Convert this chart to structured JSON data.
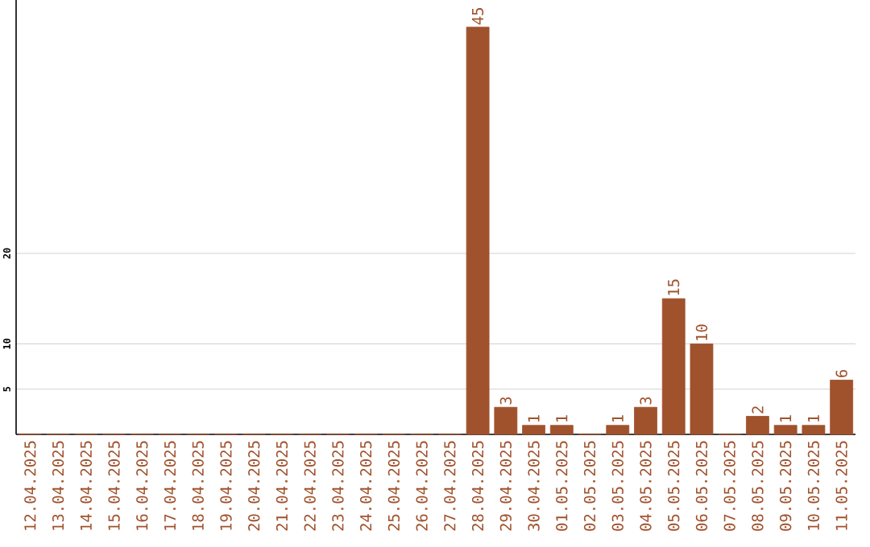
{
  "chart_data": {
    "type": "bar",
    "categories": [
      "12.04.2025",
      "13.04.2025",
      "14.04.2025",
      "15.04.2025",
      "16.04.2025",
      "17.04.2025",
      "18.04.2025",
      "19.04.2025",
      "20.04.2025",
      "21.04.2025",
      "22.04.2025",
      "23.04.2025",
      "24.04.2025",
      "25.04.2025",
      "26.04.2025",
      "27.04.2025",
      "28.04.2025",
      "29.04.2025",
      "30.04.2025",
      "01.05.2025",
      "02.05.2025",
      "03.05.2025",
      "04.05.2025",
      "05.05.2025",
      "06.05.2025",
      "07.05.2025",
      "08.05.2025",
      "09.05.2025",
      "10.05.2025",
      "11.05.2025"
    ],
    "values": [
      0,
      0,
      0,
      0,
      0,
      0,
      0,
      0,
      0,
      0,
      0,
      0,
      0,
      0,
      0,
      0,
      45,
      3,
      1,
      1,
      0,
      1,
      3,
      15,
      10,
      0,
      2,
      1,
      1,
      6
    ],
    "value_labels": [
      null,
      null,
      null,
      null,
      null,
      null,
      null,
      null,
      null,
      null,
      null,
      null,
      null,
      null,
      null,
      null,
      "45",
      "3",
      "1",
      "1",
      null,
      "1",
      "3",
      "15",
      "10",
      null,
      "2",
      "1",
      "1",
      "6"
    ],
    "color": "#a0522d",
    "ylim": [
      0,
      48
    ],
    "yticks": [
      5,
      10,
      20
    ],
    "grid": "y"
  }
}
